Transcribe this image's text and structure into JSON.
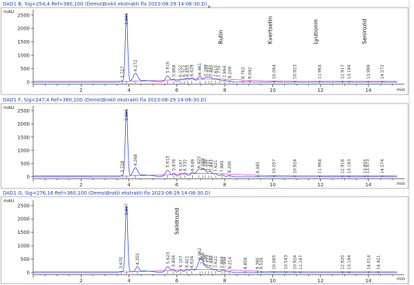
{
  "colors": {
    "header_text": "#1a3fb0",
    "signal_trace": "#1f3fcf",
    "baseline_trace": "#d12ad1",
    "frame": "#9a9a9a",
    "marker": "#2bb52b"
  },
  "chart_data": [
    {
      "type": "line",
      "title": "DAD1 B, Sig=254,4 Ref=360,100 (Demo\\Brokli ekstrakti fla 2023-08-29 14-06-30.D)",
      "ylabel": "mAU",
      "xlabel": "min",
      "xlim": [
        0,
        15.5
      ],
      "ylim": [
        -80,
        2700
      ],
      "yticks": [
        0,
        500,
        1000,
        1500,
        2000,
        2500
      ],
      "xticks": [
        2,
        4,
        6,
        8,
        10,
        12,
        14
      ],
      "green_marker_x": 7.35,
      "peaks": [
        {
          "rt": 3.727,
          "label": "3.727",
          "height": 45
        },
        {
          "rt": 3.896,
          "label": "3.896",
          "height": 2520
        },
        {
          "rt": 4.272,
          "label": "4.272",
          "height": 290
        },
        {
          "rt": 5.616,
          "label": "5.616",
          "height": 230
        },
        {
          "rt": 5.868,
          "label": "5.868",
          "height": 100
        },
        {
          "rt": 6.152,
          "label": "6.152",
          "height": 85
        },
        {
          "rt": 6.312,
          "label": "6.312",
          "height": 90
        },
        {
          "rt": 6.453,
          "label": "6.453",
          "height": 95
        },
        {
          "rt": 6.629,
          "label": "6.629",
          "height": 110
        },
        {
          "rt": 6.961,
          "label": "6.961",
          "height": 170
        },
        {
          "rt": 7.199,
          "label": "7.199",
          "height": 115
        },
        {
          "rt": 7.331,
          "label": "7.331",
          "height": 105
        },
        {
          "rt": 7.445,
          "label": "7.445",
          "height": 100
        },
        {
          "rt": 7.615,
          "label": "7.615",
          "height": 85
        },
        {
          "rt": 7.77,
          "label": "7.770",
          "height": 70
        },
        {
          "rt": 7.994,
          "label": "7.994",
          "height": 60
        },
        {
          "rt": 8.209,
          "label": "8.209",
          "height": 40
        },
        {
          "rt": 8.762,
          "label": "8.762",
          "height": 20
        },
        {
          "rt": 9.042,
          "label": "9.042",
          "height": 18
        },
        {
          "rt": 10.064,
          "label": "10.064",
          "height": 12
        },
        {
          "rt": 10.923,
          "label": "10.923",
          "height": 10
        },
        {
          "rt": 11.964,
          "label": "11.964",
          "height": 10
        },
        {
          "rt": 12.917,
          "label": "12.917",
          "height": 8
        },
        {
          "rt": 13.194,
          "label": "13.194",
          "height": 8
        },
        {
          "rt": 13.999,
          "label": "13.999",
          "height": 8
        },
        {
          "rt": 14.572,
          "label": "14.572",
          "height": 8
        }
      ],
      "compounds": [
        {
          "name": "Rutin",
          "rt": 7.994
        },
        {
          "name": "Kvertsetin",
          "rt": 10.064
        },
        {
          "name": "Lyutionin",
          "rt": 11.964
        },
        {
          "name": "Senirozid",
          "rt": 13.999
        }
      ]
    },
    {
      "type": "line",
      "title": "DAD1 F, Sig=247,4 Ref=360,100 (Demo\\Brokli ekstrakti fla 2023-08-29 14-06-30.D)",
      "ylabel": "mAU",
      "xlabel": "min",
      "xlim": [
        0,
        15.5
      ],
      "ylim": [
        -80,
        2700
      ],
      "yticks": [
        0,
        500,
        1000,
        1500,
        2000,
        2500
      ],
      "xticks": [
        2,
        4,
        6,
        8,
        10,
        12,
        14
      ],
      "peaks": [
        {
          "rt": 3.728,
          "label": "3.728",
          "height": 45
        },
        {
          "rt": 3.896,
          "label": "3.896",
          "height": 2520
        },
        {
          "rt": 4.268,
          "label": "4.268",
          "height": 300
        },
        {
          "rt": 5.615,
          "label": "5.615",
          "height": 240
        },
        {
          "rt": 5.876,
          "label": "5.876",
          "height": 120
        },
        {
          "rt": 6.167,
          "label": "6.167",
          "height": 100
        },
        {
          "rt": 6.332,
          "label": "6.332",
          "height": 105
        },
        {
          "rt": 6.649,
          "label": "6.649",
          "height": 110
        },
        {
          "rt": 6.922,
          "label": "6.922",
          "height": 220
        },
        {
          "rt": 7.089,
          "label": "7.089",
          "height": 150
        },
        {
          "rt": 7.186,
          "label": "7.186",
          "height": 120
        },
        {
          "rt": 7.331,
          "label": "7.331",
          "height": 110
        },
        {
          "rt": 7.443,
          "label": "7.443",
          "height": 100
        },
        {
          "rt": 7.621,
          "label": "7.621",
          "height": 80
        },
        {
          "rt": 7.885,
          "label": "7.885",
          "height": 60
        },
        {
          "rt": 8.2,
          "label": "8.200",
          "height": 40
        },
        {
          "rt": 9.385,
          "label": "9.385",
          "height": 15
        },
        {
          "rt": 10.057,
          "label": "10.057",
          "height": 12
        },
        {
          "rt": 10.924,
          "label": "10.924",
          "height": 10
        },
        {
          "rt": 11.964,
          "label": "11.964",
          "height": 10
        },
        {
          "rt": 12.918,
          "label": "12.918",
          "height": 8
        },
        {
          "rt": 13.193,
          "label": "13.193",
          "height": 8
        },
        {
          "rt": 13.855,
          "label": "13.855",
          "height": 8
        },
        {
          "rt": 13.973,
          "label": "13.973",
          "height": 8
        },
        {
          "rt": 14.574,
          "label": "14.574",
          "height": 8
        }
      ],
      "compounds": []
    },
    {
      "type": "line",
      "title": "DAD1 G, Sig=276,16 Ref=360,100 (Demo\\Brokli ekstrakti fla 2023-08-29 14-06-30.D)",
      "ylabel": "mAU",
      "xlabel": "min",
      "xlim": [
        0,
        15.5
      ],
      "ylim": [
        -80,
        2700
      ],
      "yticks": [
        0,
        500,
        1000,
        1500,
        2000,
        2500
      ],
      "xticks": [
        2,
        4,
        6,
        8,
        10,
        12,
        14
      ],
      "peaks": [
        {
          "rt": 3.67,
          "label": "3.670",
          "height": 40
        },
        {
          "rt": 3.897,
          "label": "3.897",
          "height": 2480
        },
        {
          "rt": 4.355,
          "label": "4.355",
          "height": 180
        },
        {
          "rt": 5.623,
          "label": "5.623",
          "height": 220
        },
        {
          "rt": 5.856,
          "label": "5.856",
          "height": 110
        },
        {
          "rt": 6.157,
          "label": "6.157",
          "height": 90
        },
        {
          "rt": 6.421,
          "label": "6.421",
          "height": 80
        },
        {
          "rt": 6.624,
          "label": "6.624",
          "height": 75
        },
        {
          "rt": 6.962,
          "label": "6.962",
          "height": 380
        },
        {
          "rt": 7.068,
          "label": "7.068",
          "height": 200
        },
        {
          "rt": 7.186,
          "label": "7.186",
          "height": 140
        },
        {
          "rt": 7.322,
          "label": "7.322",
          "height": 110
        },
        {
          "rt": 7.446,
          "label": "7.446",
          "height": 95
        },
        {
          "rt": 7.621,
          "label": "7.621",
          "height": 75
        },
        {
          "rt": 7.884,
          "label": "7.884",
          "height": 55
        },
        {
          "rt": 7.994,
          "label": "7.994",
          "height": 50
        },
        {
          "rt": 8.214,
          "label": "8.214",
          "height": 35
        },
        {
          "rt": 8.858,
          "label": "8.858",
          "height": 20
        },
        {
          "rt": 9.36,
          "label": "9.360",
          "height": 18
        },
        {
          "rt": 9.529,
          "label": "9.529",
          "height": 15
        },
        {
          "rt": 10.065,
          "label": "10.065",
          "height": 12
        },
        {
          "rt": 10.543,
          "label": "10.543",
          "height": 10
        },
        {
          "rt": 10.924,
          "label": "10.924",
          "height": 10
        },
        {
          "rt": 11.167,
          "label": "11.167",
          "height": 10
        },
        {
          "rt": 12.92,
          "label": "12.920",
          "height": 8
        },
        {
          "rt": 13.194,
          "label": "13.194",
          "height": 8
        },
        {
          "rt": 14.014,
          "label": "14.014",
          "height": 8
        },
        {
          "rt": 14.421,
          "label": "14.421",
          "height": 8
        }
      ],
      "compounds": [
        {
          "name": "Salidrozid",
          "rt": 6.157
        }
      ]
    }
  ]
}
